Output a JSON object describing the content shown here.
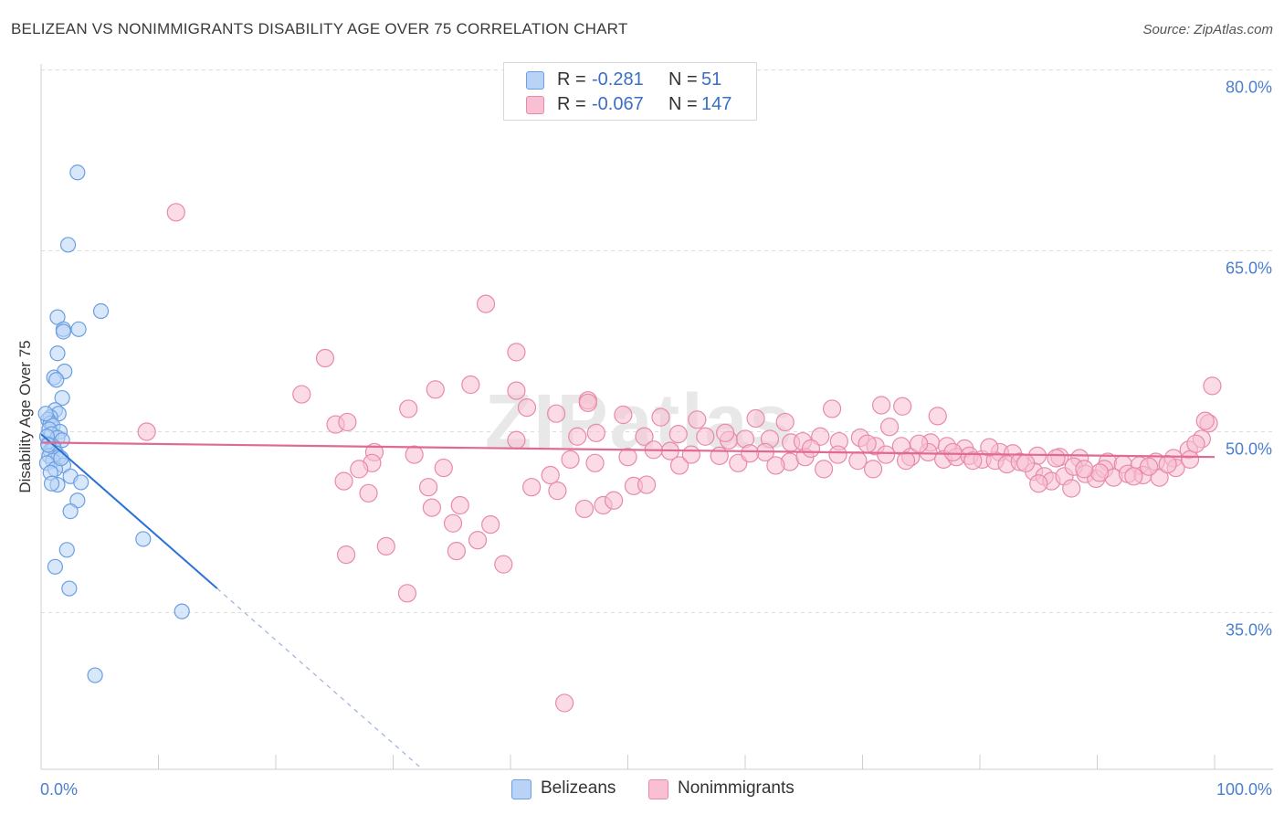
{
  "chart_data": {
    "type": "scatter",
    "title": "BELIZEAN VS NONIMMIGRANTS DISABILITY AGE OVER 75 CORRELATION CHART",
    "source": "Source: ZipAtlas.com",
    "xlabel": "",
    "ylabel": "Disability Age Over 75",
    "xlim": [
      0,
      100
    ],
    "ylim": [
      22,
      80.5
    ],
    "x_tick_labels": [
      "0.0%",
      "100.0%"
    ],
    "y_ticks": [
      35,
      50,
      65,
      80
    ],
    "y_tick_labels": [
      "35.0%",
      "50.0%",
      "65.0%",
      "80.0%"
    ],
    "watermark": "ZIPatlas",
    "legend": [
      {
        "r_label": "R =",
        "r_value": "-0.281",
        "n_label": "N =",
        "n_value": "51"
      },
      {
        "r_label": "R =",
        "r_value": "-0.067",
        "n_label": "N =",
        "n_value": "147"
      }
    ],
    "series": [
      {
        "name": "Belizeans",
        "fill": "#b8d3f5",
        "stroke": "#6a9fe0",
        "trend_color": "#2a72d8",
        "trend": {
          "x0": 0,
          "y0": 49.8,
          "x1": 15,
          "y1": 37.0,
          "dash_x1": 32.5,
          "dash_y1": 22
        },
        "points": [
          [
            3.1,
            71.5
          ],
          [
            2.3,
            65.5
          ],
          [
            5.1,
            60.0
          ],
          [
            1.4,
            59.5
          ],
          [
            1.9,
            58.5
          ],
          [
            3.2,
            58.5
          ],
          [
            1.9,
            58.3
          ],
          [
            1.4,
            56.5
          ],
          [
            2.0,
            55.0
          ],
          [
            1.1,
            54.5
          ],
          [
            1.3,
            54.3
          ],
          [
            1.8,
            52.8
          ],
          [
            1.2,
            51.8
          ],
          [
            1.5,
            51.5
          ],
          [
            0.8,
            51.2
          ],
          [
            0.6,
            51.0
          ],
          [
            0.8,
            50.7
          ],
          [
            1.0,
            50.5
          ],
          [
            0.7,
            50.2
          ],
          [
            1.6,
            50.0
          ],
          [
            0.9,
            49.8
          ],
          [
            1.4,
            49.5
          ],
          [
            1.8,
            49.3
          ],
          [
            0.6,
            49.0
          ],
          [
            1.0,
            48.8
          ],
          [
            1.1,
            48.6
          ],
          [
            0.8,
            48.4
          ],
          [
            1.3,
            48.2
          ],
          [
            0.7,
            48.0
          ],
          [
            1.5,
            47.9
          ],
          [
            1.0,
            47.6
          ],
          [
            0.5,
            47.4
          ],
          [
            1.9,
            47.2
          ],
          [
            1.2,
            46.9
          ],
          [
            0.8,
            46.6
          ],
          [
            2.5,
            46.3
          ],
          [
            3.4,
            45.8
          ],
          [
            1.4,
            45.6
          ],
          [
            3.1,
            44.3
          ],
          [
            2.5,
            43.4
          ],
          [
            8.7,
            41.1
          ],
          [
            2.2,
            40.2
          ],
          [
            1.2,
            38.8
          ],
          [
            2.4,
            37.0
          ],
          [
            12.0,
            35.1
          ],
          [
            4.6,
            29.8
          ],
          [
            0.4,
            51.5
          ],
          [
            0.5,
            49.6
          ],
          [
            1.7,
            47.8
          ],
          [
            0.9,
            45.7
          ],
          [
            0.6,
            48.9
          ]
        ]
      },
      {
        "name": "Nonimmigrants",
        "fill": "#f8c0d2",
        "stroke": "#e88aa8",
        "trend_color": "#e06a93",
        "trend": {
          "x0": 0,
          "y0": 49.1,
          "x1": 100,
          "y1": 47.9
        },
        "points": [
          [
            11.5,
            68.2
          ],
          [
            37.9,
            60.6
          ],
          [
            24.2,
            56.1
          ],
          [
            40.5,
            56.6
          ],
          [
            36.6,
            53.9
          ],
          [
            33.6,
            53.5
          ],
          [
            40.5,
            53.4
          ],
          [
            46.6,
            52.6
          ],
          [
            41.4,
            52.0
          ],
          [
            46.6,
            52.4
          ],
          [
            22.2,
            53.1
          ],
          [
            31.3,
            51.9
          ],
          [
            43.9,
            51.5
          ],
          [
            49.6,
            51.4
          ],
          [
            52.8,
            51.2
          ],
          [
            55.9,
            51.0
          ],
          [
            60.9,
            51.1
          ],
          [
            63.4,
            50.8
          ],
          [
            67.4,
            51.9
          ],
          [
            71.6,
            52.2
          ],
          [
            73.4,
            52.1
          ],
          [
            76.4,
            51.3
          ],
          [
            25.1,
            50.6
          ],
          [
            26.1,
            50.8
          ],
          [
            40.5,
            49.3
          ],
          [
            45.7,
            49.6
          ],
          [
            47.3,
            49.9
          ],
          [
            51.4,
            49.6
          ],
          [
            54.3,
            49.8
          ],
          [
            56.6,
            49.6
          ],
          [
            58.6,
            49.3
          ],
          [
            60.0,
            49.4
          ],
          [
            62.1,
            49.4
          ],
          [
            63.9,
            49.1
          ],
          [
            64.9,
            49.2
          ],
          [
            68.0,
            49.2
          ],
          [
            71.1,
            48.8
          ],
          [
            73.3,
            48.8
          ],
          [
            75.8,
            49.1
          ],
          [
            77.2,
            48.8
          ],
          [
            78.7,
            48.6
          ],
          [
            81.7,
            48.3
          ],
          [
            82.8,
            48.2
          ],
          [
            84.9,
            48.0
          ],
          [
            86.8,
            47.9
          ],
          [
            88.5,
            47.8
          ],
          [
            90.9,
            47.5
          ],
          [
            92.2,
            47.3
          ],
          [
            93.6,
            47.2
          ],
          [
            95.0,
            47.5
          ],
          [
            96.5,
            47.8
          ],
          [
            97.8,
            48.5
          ],
          [
            98.9,
            49.4
          ],
          [
            99.5,
            50.7
          ],
          [
            99.8,
            53.8
          ],
          [
            9.0,
            50.0
          ],
          [
            28.4,
            48.3
          ],
          [
            28.2,
            47.4
          ],
          [
            27.1,
            46.9
          ],
          [
            25.8,
            45.9
          ],
          [
            27.9,
            44.9
          ],
          [
            31.8,
            48.1
          ],
          [
            34.3,
            47.0
          ],
          [
            43.4,
            46.4
          ],
          [
            44.0,
            45.1
          ],
          [
            41.8,
            45.4
          ],
          [
            45.1,
            47.7
          ],
          [
            47.2,
            47.4
          ],
          [
            47.9,
            43.9
          ],
          [
            46.3,
            43.6
          ],
          [
            48.8,
            44.3
          ],
          [
            50.5,
            45.5
          ],
          [
            51.6,
            45.6
          ],
          [
            50.0,
            47.9
          ],
          [
            53.6,
            48.4
          ],
          [
            54.4,
            47.2
          ],
          [
            57.8,
            48.0
          ],
          [
            59.4,
            47.4
          ],
          [
            61.7,
            48.3
          ],
          [
            63.8,
            47.5
          ],
          [
            65.1,
            47.9
          ],
          [
            66.7,
            46.9
          ],
          [
            69.6,
            47.6
          ],
          [
            70.9,
            46.9
          ],
          [
            72.0,
            48.1
          ],
          [
            74.1,
            47.9
          ],
          [
            75.6,
            48.3
          ],
          [
            76.9,
            47.7
          ],
          [
            78.0,
            47.9
          ],
          [
            79.1,
            48.0
          ],
          [
            80.2,
            47.7
          ],
          [
            81.3,
            47.6
          ],
          [
            82.3,
            47.3
          ],
          [
            83.4,
            47.5
          ],
          [
            84.6,
            46.7
          ],
          [
            85.5,
            46.3
          ],
          [
            86.1,
            45.9
          ],
          [
            87.2,
            46.3
          ],
          [
            88.0,
            47.1
          ],
          [
            89.0,
            46.5
          ],
          [
            89.9,
            46.1
          ],
          [
            90.6,
            46.9
          ],
          [
            91.4,
            46.2
          ],
          [
            92.6,
            46.5
          ],
          [
            93.9,
            46.4
          ],
          [
            95.3,
            46.2
          ],
          [
            96.7,
            47.0
          ],
          [
            97.9,
            47.7
          ],
          [
            98.4,
            49.0
          ],
          [
            85.0,
            45.7
          ],
          [
            87.8,
            45.3
          ],
          [
            86.5,
            47.8
          ],
          [
            90.2,
            46.6
          ],
          [
            94.4,
            47.1
          ],
          [
            29.4,
            40.5
          ],
          [
            26.0,
            39.8
          ],
          [
            35.4,
            40.1
          ],
          [
            37.2,
            41.0
          ],
          [
            33.0,
            45.4
          ],
          [
            33.3,
            43.7
          ],
          [
            35.7,
            43.9
          ],
          [
            35.1,
            42.4
          ],
          [
            38.3,
            42.3
          ],
          [
            39.4,
            39.0
          ],
          [
            31.2,
            36.6
          ],
          [
            44.6,
            27.5
          ],
          [
            58.3,
            49.9
          ],
          [
            62.6,
            47.2
          ],
          [
            66.4,
            49.6
          ],
          [
            69.8,
            49.5
          ],
          [
            72.3,
            50.4
          ],
          [
            74.8,
            49.0
          ],
          [
            77.7,
            48.3
          ],
          [
            79.4,
            47.6
          ],
          [
            80.8,
            48.7
          ],
          [
            83.9,
            47.4
          ],
          [
            88.9,
            46.9
          ],
          [
            93.1,
            46.3
          ],
          [
            96.0,
            47.3
          ],
          [
            99.2,
            50.9
          ],
          [
            52.2,
            48.5
          ],
          [
            55.4,
            48.1
          ],
          [
            60.4,
            48.2
          ],
          [
            65.6,
            48.6
          ],
          [
            67.9,
            48.1
          ],
          [
            70.4,
            49.0
          ],
          [
            73.7,
            47.6
          ]
        ]
      }
    ]
  },
  "bottom_legend": [
    {
      "label": "Belizeans"
    },
    {
      "label": "Nonimmigrants"
    }
  ]
}
